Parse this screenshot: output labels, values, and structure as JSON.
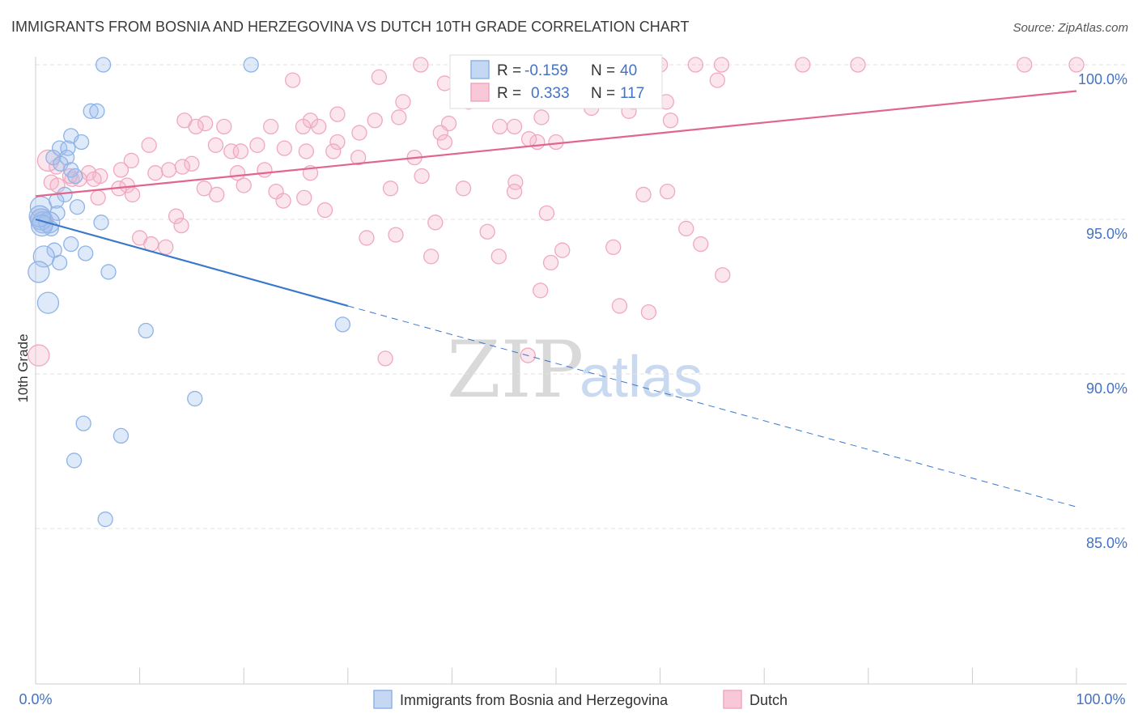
{
  "chart_data": {
    "type": "scatter",
    "title": "IMMIGRANTS FROM BOSNIA AND HERZEGOVINA VS DUTCH 10TH GRADE CORRELATION CHART",
    "source": "Source: ZipAtlas.com",
    "ylabel": "10th Grade",
    "xlim": [
      0,
      100
    ],
    "ylim": [
      80.3,
      100.9
    ],
    "x_tick_labels": [
      "0.0%",
      "100.0%"
    ],
    "y_ticks": [
      {
        "value": 100,
        "label": "100.0%"
      },
      {
        "value": 95,
        "label": "95.0%"
      },
      {
        "value": 90,
        "label": "90.0%"
      },
      {
        "value": 85,
        "label": "85.0%"
      }
    ],
    "grid": "horizontal dashed",
    "watermark": {
      "part1": "ZIP",
      "part2": "atlas"
    },
    "legend_top": {
      "rows": [
        {
          "r_label": "R = ",
          "r_value": "-0.159",
          "n_label": "N = ",
          "n_value": "40"
        },
        {
          "r_label": "R = ",
          "r_value": "0.333",
          "n_label": "N = ",
          "n_value": "117"
        }
      ]
    },
    "legend_bottom": [
      "Immigrants from Bosnia and Herzegovina",
      "Dutch"
    ],
    "series": [
      {
        "name": "Immigrants from Bosnia and Herzegovina",
        "color": "#8fb3e6",
        "line_color": "#3a78cc",
        "trend": {
          "x0": 0,
          "y0": 95.0,
          "x1": 30,
          "y1": 92.2,
          "dash_to_x": 100,
          "dash_to_y": 85.7
        },
        "points": [
          [
            6.5,
            100.0
          ],
          [
            20.7,
            100.0
          ],
          [
            5.3,
            98.5
          ],
          [
            5.9,
            98.5
          ],
          [
            3.4,
            97.7
          ],
          [
            4.4,
            97.5
          ],
          [
            2.3,
            97.3
          ],
          [
            3.1,
            97.3
          ],
          [
            1.7,
            97.0
          ],
          [
            3.0,
            97.0
          ],
          [
            2.4,
            96.8
          ],
          [
            3.4,
            96.6
          ],
          [
            3.8,
            96.4
          ],
          [
            2.8,
            95.8
          ],
          [
            2.0,
            95.6
          ],
          [
            4.0,
            95.4
          ],
          [
            2.1,
            95.2
          ],
          [
            0.5,
            95.4
          ],
          [
            0.5,
            95.0
          ],
          [
            0.7,
            94.9
          ],
          [
            1.3,
            94.9
          ],
          [
            6.3,
            94.9
          ],
          [
            1.5,
            94.7
          ],
          [
            3.4,
            94.2
          ],
          [
            1.8,
            94.0
          ],
          [
            4.8,
            93.9
          ],
          [
            0.8,
            93.8
          ],
          [
            2.3,
            93.6
          ],
          [
            0.3,
            93.3
          ],
          [
            7.0,
            93.3
          ],
          [
            1.2,
            92.3
          ],
          [
            10.6,
            91.4
          ],
          [
            29.5,
            91.6
          ],
          [
            15.3,
            89.2
          ],
          [
            4.6,
            88.4
          ],
          [
            8.2,
            88.0
          ],
          [
            3.7,
            87.2
          ],
          [
            6.7,
            85.3
          ],
          [
            0.4,
            95.1
          ],
          [
            0.6,
            94.8
          ]
        ]
      },
      {
        "name": "Dutch",
        "color": "#f0a8c0",
        "line_color": "#e06690",
        "trend": {
          "x0": 0,
          "y0": 95.75,
          "x1": 100,
          "y1": 99.15
        },
        "points": [
          [
            37.0,
            100.0
          ],
          [
            43.5,
            100.0
          ],
          [
            51.8,
            100.0
          ],
          [
            60.0,
            100.0
          ],
          [
            63.4,
            100.0
          ],
          [
            65.9,
            100.0
          ],
          [
            73.7,
            100.0
          ],
          [
            79.0,
            100.0
          ],
          [
            95.0,
            100.0
          ],
          [
            100.0,
            100.0
          ],
          [
            24.7,
            99.5
          ],
          [
            33.0,
            99.6
          ],
          [
            39.3,
            99.4
          ],
          [
            65.5,
            99.5
          ],
          [
            35.3,
            98.8
          ],
          [
            42.0,
            98.9
          ],
          [
            41.6,
            98.8
          ],
          [
            53.2,
            98.9
          ],
          [
            57.4,
            98.8
          ],
          [
            60.6,
            98.8
          ],
          [
            53.4,
            98.6
          ],
          [
            57.0,
            98.5
          ],
          [
            34.9,
            98.3
          ],
          [
            29.0,
            98.4
          ],
          [
            26.4,
            98.2
          ],
          [
            32.6,
            98.2
          ],
          [
            39.7,
            98.1
          ],
          [
            48.6,
            98.3
          ],
          [
            61.0,
            98.2
          ],
          [
            14.3,
            98.2
          ],
          [
            16.3,
            98.1
          ],
          [
            15.4,
            98.0
          ],
          [
            18.1,
            98.0
          ],
          [
            22.6,
            98.0
          ],
          [
            25.7,
            98.0
          ],
          [
            27.2,
            98.0
          ],
          [
            31.1,
            97.8
          ],
          [
            38.9,
            97.8
          ],
          [
            44.6,
            98.0
          ],
          [
            46.0,
            98.0
          ],
          [
            39.3,
            97.5
          ],
          [
            10.9,
            97.4
          ],
          [
            17.3,
            97.4
          ],
          [
            18.8,
            97.2
          ],
          [
            21.3,
            97.4
          ],
          [
            23.9,
            97.3
          ],
          [
            26.0,
            97.2
          ],
          [
            29.0,
            97.5
          ],
          [
            28.6,
            97.2
          ],
          [
            48.2,
            97.5
          ],
          [
            50.0,
            97.5
          ],
          [
            47.4,
            97.6
          ],
          [
            9.2,
            96.9
          ],
          [
            15.0,
            96.8
          ],
          [
            11.5,
            96.5
          ],
          [
            12.8,
            96.6
          ],
          [
            14.1,
            96.7
          ],
          [
            8.2,
            96.6
          ],
          [
            5.1,
            96.5
          ],
          [
            3.5,
            96.3
          ],
          [
            2.0,
            96.7
          ],
          [
            4.2,
            96.3
          ],
          [
            6.2,
            96.4
          ],
          [
            22.0,
            96.6
          ],
          [
            19.4,
            96.5
          ],
          [
            26.4,
            96.5
          ],
          [
            37.1,
            96.4
          ],
          [
            41.1,
            96.0
          ],
          [
            46.1,
            96.2
          ],
          [
            8.8,
            96.1
          ],
          [
            6.0,
            95.7
          ],
          [
            16.2,
            96.0
          ],
          [
            17.4,
            95.8
          ],
          [
            20.0,
            96.1
          ],
          [
            23.1,
            95.9
          ],
          [
            23.8,
            95.6
          ],
          [
            25.8,
            95.7
          ],
          [
            27.8,
            95.3
          ],
          [
            34.1,
            96.0
          ],
          [
            46.0,
            95.9
          ],
          [
            49.1,
            95.2
          ],
          [
            58.4,
            95.8
          ],
          [
            60.7,
            95.9
          ],
          [
            9.3,
            95.8
          ],
          [
            1.5,
            96.2
          ],
          [
            13.5,
            95.1
          ],
          [
            14.0,
            94.8
          ],
          [
            10.0,
            94.4
          ],
          [
            11.1,
            94.2
          ],
          [
            12.5,
            94.1
          ],
          [
            34.6,
            94.5
          ],
          [
            31.8,
            94.4
          ],
          [
            38.4,
            94.9
          ],
          [
            43.4,
            94.6
          ],
          [
            50.6,
            94.0
          ],
          [
            55.5,
            94.1
          ],
          [
            49.5,
            93.6
          ],
          [
            44.5,
            93.8
          ],
          [
            48.5,
            92.7
          ],
          [
            56.1,
            92.2
          ],
          [
            38.0,
            93.8
          ],
          [
            62.5,
            94.7
          ],
          [
            63.9,
            94.2
          ],
          [
            66.0,
            93.2
          ],
          [
            58.9,
            92.0
          ],
          [
            47.3,
            90.6
          ],
          [
            33.6,
            90.5
          ],
          [
            0.3,
            90.6
          ],
          [
            3.3,
            96.4
          ],
          [
            1.2,
            96.9
          ],
          [
            2.1,
            96.1
          ],
          [
            5.6,
            96.3
          ],
          [
            8.0,
            96.0
          ],
          [
            36.4,
            97.0
          ],
          [
            31.0,
            97.0
          ],
          [
            19.7,
            97.2
          ],
          [
            0.6,
            95.0
          ]
        ]
      }
    ]
  }
}
